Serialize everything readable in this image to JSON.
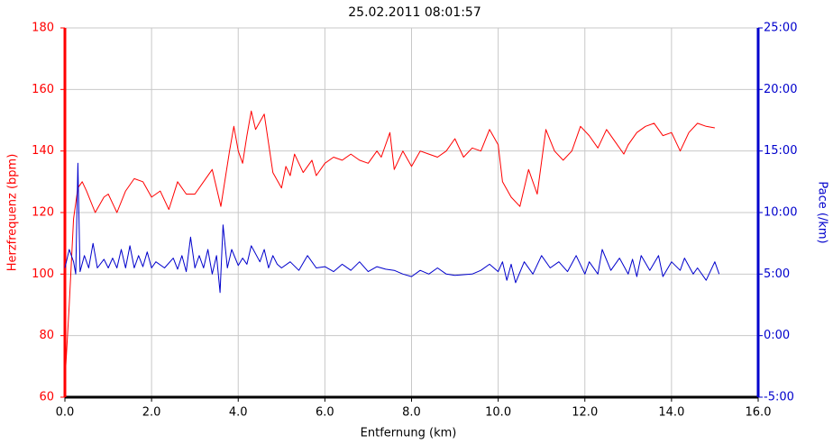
{
  "chart_data": {
    "type": "line",
    "title": "25.02.2011 08:01:57",
    "xlabel": "Entfernung (km)",
    "ylabel": "Herzfrequenz (bpm)",
    "y2label": "Pace (/km)",
    "xlim": [
      0,
      16
    ],
    "xticks": [
      {
        "value": 0,
        "label": "0.0"
      },
      {
        "value": 2,
        "label": "2.0"
      },
      {
        "value": 4,
        "label": "4.0"
      },
      {
        "value": 6,
        "label": "6.0"
      },
      {
        "value": 8,
        "label": "8.0"
      },
      {
        "value": 10,
        "label": "10.0"
      },
      {
        "value": 12,
        "label": "12.0"
      },
      {
        "value": 14,
        "label": "14.0"
      },
      {
        "value": 16,
        "label": "16.0"
      }
    ],
    "ylim": [
      60,
      180
    ],
    "yticks": [
      60,
      80,
      100,
      120,
      140,
      160,
      180
    ],
    "y2lim": [
      -5,
      25
    ],
    "y2ticks": [
      {
        "value": -5,
        "label": "-5:00"
      },
      {
        "value": 0,
        "label": "0:00"
      },
      {
        "value": 5,
        "label": "5:00"
      },
      {
        "value": 10,
        "label": "10:00"
      },
      {
        "value": 15,
        "label": "15:00"
      },
      {
        "value": 20,
        "label": "20:00"
      },
      {
        "value": 25,
        "label": "25:00"
      }
    ],
    "grid": true,
    "series": [
      {
        "name": "Herzfrequenz",
        "color": "#ff0000",
        "axis": "y",
        "x": [
          0,
          0.1,
          0.2,
          0.3,
          0.4,
          0.5,
          0.7,
          0.9,
          1.0,
          1.2,
          1.4,
          1.6,
          1.8,
          2.0,
          2.2,
          2.4,
          2.6,
          2.8,
          3.0,
          3.2,
          3.4,
          3.6,
          3.8,
          3.9,
          4.0,
          4.1,
          4.2,
          4.3,
          4.4,
          4.6,
          4.8,
          5.0,
          5.1,
          5.2,
          5.3,
          5.5,
          5.7,
          5.8,
          6.0,
          6.2,
          6.4,
          6.6,
          6.8,
          7.0,
          7.2,
          7.3,
          7.5,
          7.6,
          7.8,
          8.0,
          8.2,
          8.4,
          8.6,
          8.8,
          9.0,
          9.2,
          9.4,
          9.6,
          9.8,
          10.0,
          10.1,
          10.3,
          10.5,
          10.7,
          10.9,
          11.1,
          11.3,
          11.5,
          11.7,
          11.9,
          12.1,
          12.3,
          12.5,
          12.7,
          12.9,
          13.0,
          13.2,
          13.4,
          13.6,
          13.8,
          14.0,
          14.2,
          14.4,
          14.6,
          14.8,
          15.0
        ],
        "values": [
          65,
          90,
          118,
          128,
          130,
          127,
          120,
          125,
          126,
          120,
          127,
          131,
          130,
          125,
          127,
          121,
          130,
          126,
          126,
          130,
          134,
          122,
          140,
          148,
          140,
          136,
          145,
          153,
          147,
          152,
          133,
          128,
          135,
          132,
          139,
          133,
          137,
          132,
          136,
          138,
          137,
          139,
          137,
          136,
          140,
          138,
          146,
          134,
          140,
          135,
          140,
          139,
          138,
          140,
          144,
          138,
          141,
          140,
          147,
          142,
          130,
          125,
          122,
          134,
          126,
          147,
          140,
          137,
          140,
          148,
          145,
          141,
          147,
          143,
          139,
          142,
          146,
          148,
          149,
          145,
          146,
          140,
          146,
          149,
          148,
          147.5
        ]
      },
      {
        "name": "Pace",
        "color": "#0000cc",
        "axis": "y2",
        "x": [
          0.0,
          0.1,
          0.2,
          0.25,
          0.3,
          0.35,
          0.45,
          0.55,
          0.65,
          0.75,
          0.9,
          1.0,
          1.1,
          1.2,
          1.3,
          1.4,
          1.5,
          1.6,
          1.7,
          1.8,
          1.9,
          2.0,
          2.1,
          2.3,
          2.5,
          2.6,
          2.7,
          2.8,
          2.9,
          3.0,
          3.1,
          3.2,
          3.3,
          3.4,
          3.5,
          3.58,
          3.65,
          3.75,
          3.85,
          4.0,
          4.1,
          4.2,
          4.3,
          4.5,
          4.6,
          4.7,
          4.8,
          4.9,
          5.0,
          5.2,
          5.4,
          5.6,
          5.8,
          6.0,
          6.2,
          6.4,
          6.6,
          6.8,
          7.0,
          7.2,
          7.4,
          7.6,
          7.8,
          8.0,
          8.2,
          8.4,
          8.6,
          8.8,
          9.0,
          9.4,
          9.6,
          9.8,
          10.0,
          10.1,
          10.2,
          10.3,
          10.4,
          10.6,
          10.8,
          11.0,
          11.2,
          11.4,
          11.6,
          11.8,
          12.0,
          12.1,
          12.3,
          12.4,
          12.6,
          12.8,
          13.0,
          13.1,
          13.2,
          13.3,
          13.5,
          13.7,
          13.8,
          14.0,
          14.2,
          14.3,
          14.5,
          14.6,
          14.8,
          15.0,
          15.1
        ],
        "values": [
          5.5,
          7.0,
          6.0,
          5.0,
          14.0,
          5.2,
          6.5,
          5.5,
          7.5,
          5.5,
          6.2,
          5.5,
          6.3,
          5.5,
          7.0,
          5.5,
          7.3,
          5.5,
          6.5,
          5.6,
          6.8,
          5.5,
          6.0,
          5.5,
          6.3,
          5.4,
          6.5,
          5.2,
          8.0,
          5.5,
          6.5,
          5.5,
          7.0,
          5.0,
          6.5,
          3.5,
          9.0,
          5.5,
          7.0,
          5.7,
          6.3,
          5.8,
          7.3,
          6.0,
          7.0,
          5.5,
          6.5,
          5.8,
          5.5,
          6.0,
          5.3,
          6.5,
          5.5,
          5.6,
          5.2,
          5.8,
          5.3,
          6.0,
          5.2,
          5.6,
          5.4,
          5.3,
          5.0,
          4.8,
          5.3,
          5.0,
          5.5,
          5.0,
          4.9,
          5.0,
          5.3,
          5.8,
          5.2,
          6.0,
          4.5,
          5.8,
          4.3,
          6.0,
          5.0,
          6.5,
          5.5,
          6.0,
          5.2,
          6.5,
          5.0,
          6.0,
          5.0,
          7.0,
          5.3,
          6.3,
          5.0,
          6.2,
          4.8,
          6.5,
          5.3,
          6.5,
          4.8,
          6.0,
          5.3,
          6.3,
          5.0,
          5.5,
          4.5,
          6.0,
          5.0
        ]
      }
    ]
  }
}
